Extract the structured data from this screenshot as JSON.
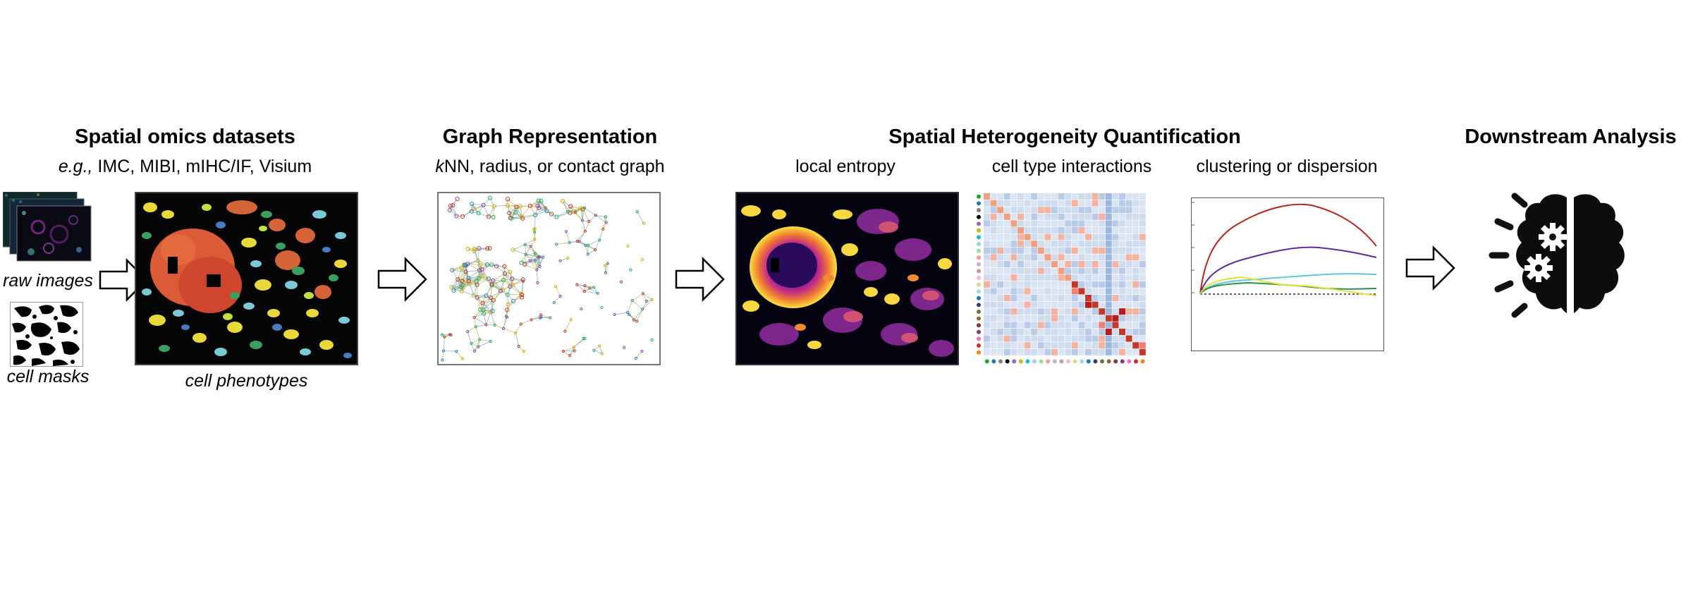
{
  "sections": {
    "spatial": {
      "title": "Spatial omics datasets",
      "subtitle_prefix": "e.g.,",
      "subtitle_rest": " IMC, MIBI, mIHC/IF, Visium",
      "raw_images_label": "raw images",
      "cell_masks_label": "cell masks",
      "phenotypes_label": "cell phenotypes"
    },
    "graph": {
      "title": "Graph Representation",
      "subtitle_k": "k",
      "subtitle_rest": "NN, radius, or contact graph"
    },
    "heterogeneity": {
      "title": "Spatial Heterogeneity Quantification",
      "local_entropy_label": "local entropy",
      "interactions_label": "cell type interactions",
      "clustering_label": "clustering or dispersion"
    },
    "downstream": {
      "title": "Downstream Analysis",
      "icon": "brain-gears-icon"
    }
  },
  "colors": {
    "arrow_stroke": "#000000",
    "curve_red": "#b3261e",
    "curve_purple": "#5b2a9a",
    "curve_cyan": "#5cc8d8",
    "curve_yellow": "#e8e03a",
    "curve_green": "#2f8f4e"
  }
}
